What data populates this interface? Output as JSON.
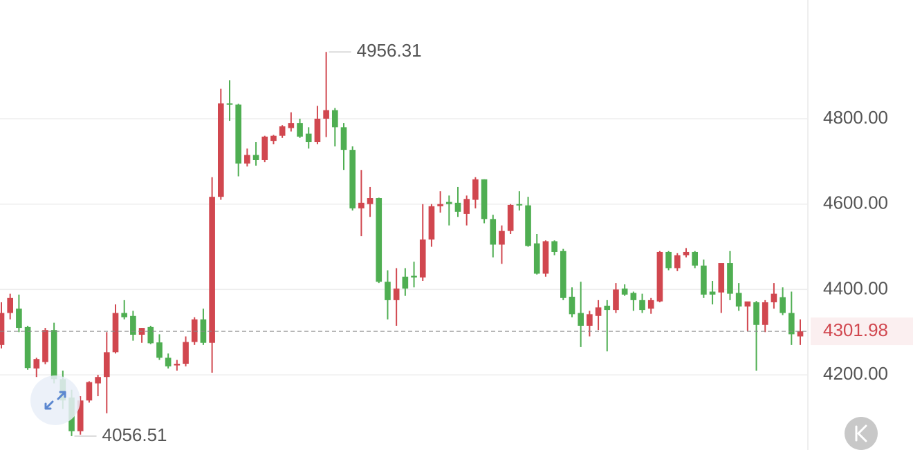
{
  "chart_data": {
    "type": "candlestick",
    "open": [
      4270,
      4345,
      4355,
      4312,
      4215,
      4230,
      4305,
      4190,
      4147,
      4068,
      4140,
      4180,
      4195,
      4253,
      4345,
      4338,
      4294,
      4312,
      4276,
      4240,
      4222,
      4226,
      4277,
      4330,
      4275,
      4617,
      4836,
      4833,
      4695,
      4715,
      4703,
      4748,
      4760,
      4778,
      4790,
      4765,
      4745,
      4800,
      4820,
      4780,
      4727,
      4590,
      4600,
      4614,
      4418,
      4375,
      4430,
      4432,
      4428,
      4517,
      4595,
      4605,
      4603,
      4577,
      4610,
      4658,
      4565,
      4505,
      4537,
      4600,
      4597,
      4508,
      4437,
      4513,
      4490,
      4383,
      4345,
      4315,
      4338,
      4362,
      4352,
      4402,
      4392,
      4375,
      4355,
      4372,
      4488,
      4450,
      4480,
      4488,
      4456,
      4395,
      4393,
      4462,
      4392,
      4360,
      4370,
      4317,
      4370,
      4382,
      4345,
      4290
    ],
    "high": [
      4370,
      4390,
      4388,
      4315,
      4240,
      4310,
      4322,
      4210,
      4165,
      4150,
      4185,
      4200,
      4300,
      4365,
      4375,
      4350,
      4310,
      4315,
      4295,
      4250,
      4235,
      4290,
      4335,
      4355,
      4663,
      4870,
      4890,
      4835,
      4730,
      4745,
      4760,
      4762,
      4785,
      4815,
      4800,
      4780,
      4830,
      4956.31,
      4825,
      4790,
      4735,
      4680,
      4640,
      4615,
      4445,
      4450,
      4450,
      4465,
      4600,
      4600,
      4630,
      4620,
      4640,
      4620,
      4663,
      4658,
      4575,
      4550,
      4600,
      4630,
      4617,
      4530,
      4515,
      4515,
      4495,
      4405,
      4418,
      4350,
      4375,
      4375,
      4415,
      4412,
      4395,
      4390,
      4380,
      4490,
      4490,
      4485,
      4497,
      4490,
      4470,
      4420,
      4460,
      4490,
      4415,
      4370,
      4373,
      4375,
      4415,
      4405,
      4395,
      4330
    ],
    "low": [
      4262,
      4330,
      4300,
      4212,
      4195,
      4225,
      4180,
      4120,
      4056.51,
      4060,
      4135,
      4150,
      4110,
      4250,
      4330,
      4280,
      4275,
      4272,
      4235,
      4215,
      4210,
      4220,
      4270,
      4270,
      4205,
      4610,
      4795,
      4665,
      4688,
      4690,
      4698,
      4740,
      4755,
      4770,
      4755,
      4730,
      4740,
      4757,
      4735,
      4680,
      4585,
      4525,
      4570,
      4415,
      4330,
      4315,
      4385,
      4405,
      4420,
      4500,
      4580,
      4550,
      4570,
      4550,
      4590,
      4555,
      4475,
      4460,
      4530,
      4585,
      4500,
      4435,
      4430,
      4480,
      4375,
      4335,
      4265,
      4290,
      4305,
      4255,
      4345,
      4385,
      4350,
      4345,
      4343,
      4370,
      4445,
      4443,
      4475,
      4450,
      4380,
      4365,
      4345,
      4375,
      4350,
      4303,
      4210,
      4300,
      4355,
      4340,
      4270,
      4270
    ],
    "close": [
      4345,
      4380,
      4310,
      4216,
      4237,
      4305,
      4190,
      4140,
      4068,
      4140,
      4183,
      4195,
      4253,
      4345,
      4335,
      4294,
      4310,
      4274,
      4240,
      4220,
      4226,
      4277,
      4330,
      4275,
      4617,
      4836,
      4833,
      4695,
      4715,
      4703,
      4758,
      4760,
      4782,
      4790,
      4758,
      4745,
      4800,
      4820,
      4780,
      4727,
      4590,
      4603,
      4614,
      4418,
      4375,
      4402,
      4402,
      4428,
      4517,
      4595,
      4600,
      4600,
      4582,
      4612,
      4658,
      4565,
      4505,
      4537,
      4598,
      4597,
      4502,
      4437,
      4513,
      4488,
      4380,
      4342,
      4315,
      4342,
      4358,
      4352,
      4400,
      4388,
      4375,
      4352,
      4375,
      4488,
      4450,
      4480,
      4488,
      4456,
      4388,
      4388,
      4462,
      4390,
      4360,
      4372,
      4317,
      4370,
      4390,
      4345,
      4295,
      4301.98
    ],
    "up_color": "#d1474f",
    "down_color": "#4fae52",
    "ylim": [
      4024,
      5078
    ],
    "yticks": [
      {
        "value": 4200,
        "label": "4200.00"
      },
      {
        "value": 4400,
        "label": "4400.00"
      },
      {
        "value": 4600,
        "label": "4600.00"
      },
      {
        "value": 4800,
        "label": "4800.00"
      }
    ],
    "grid": true
  }
}
